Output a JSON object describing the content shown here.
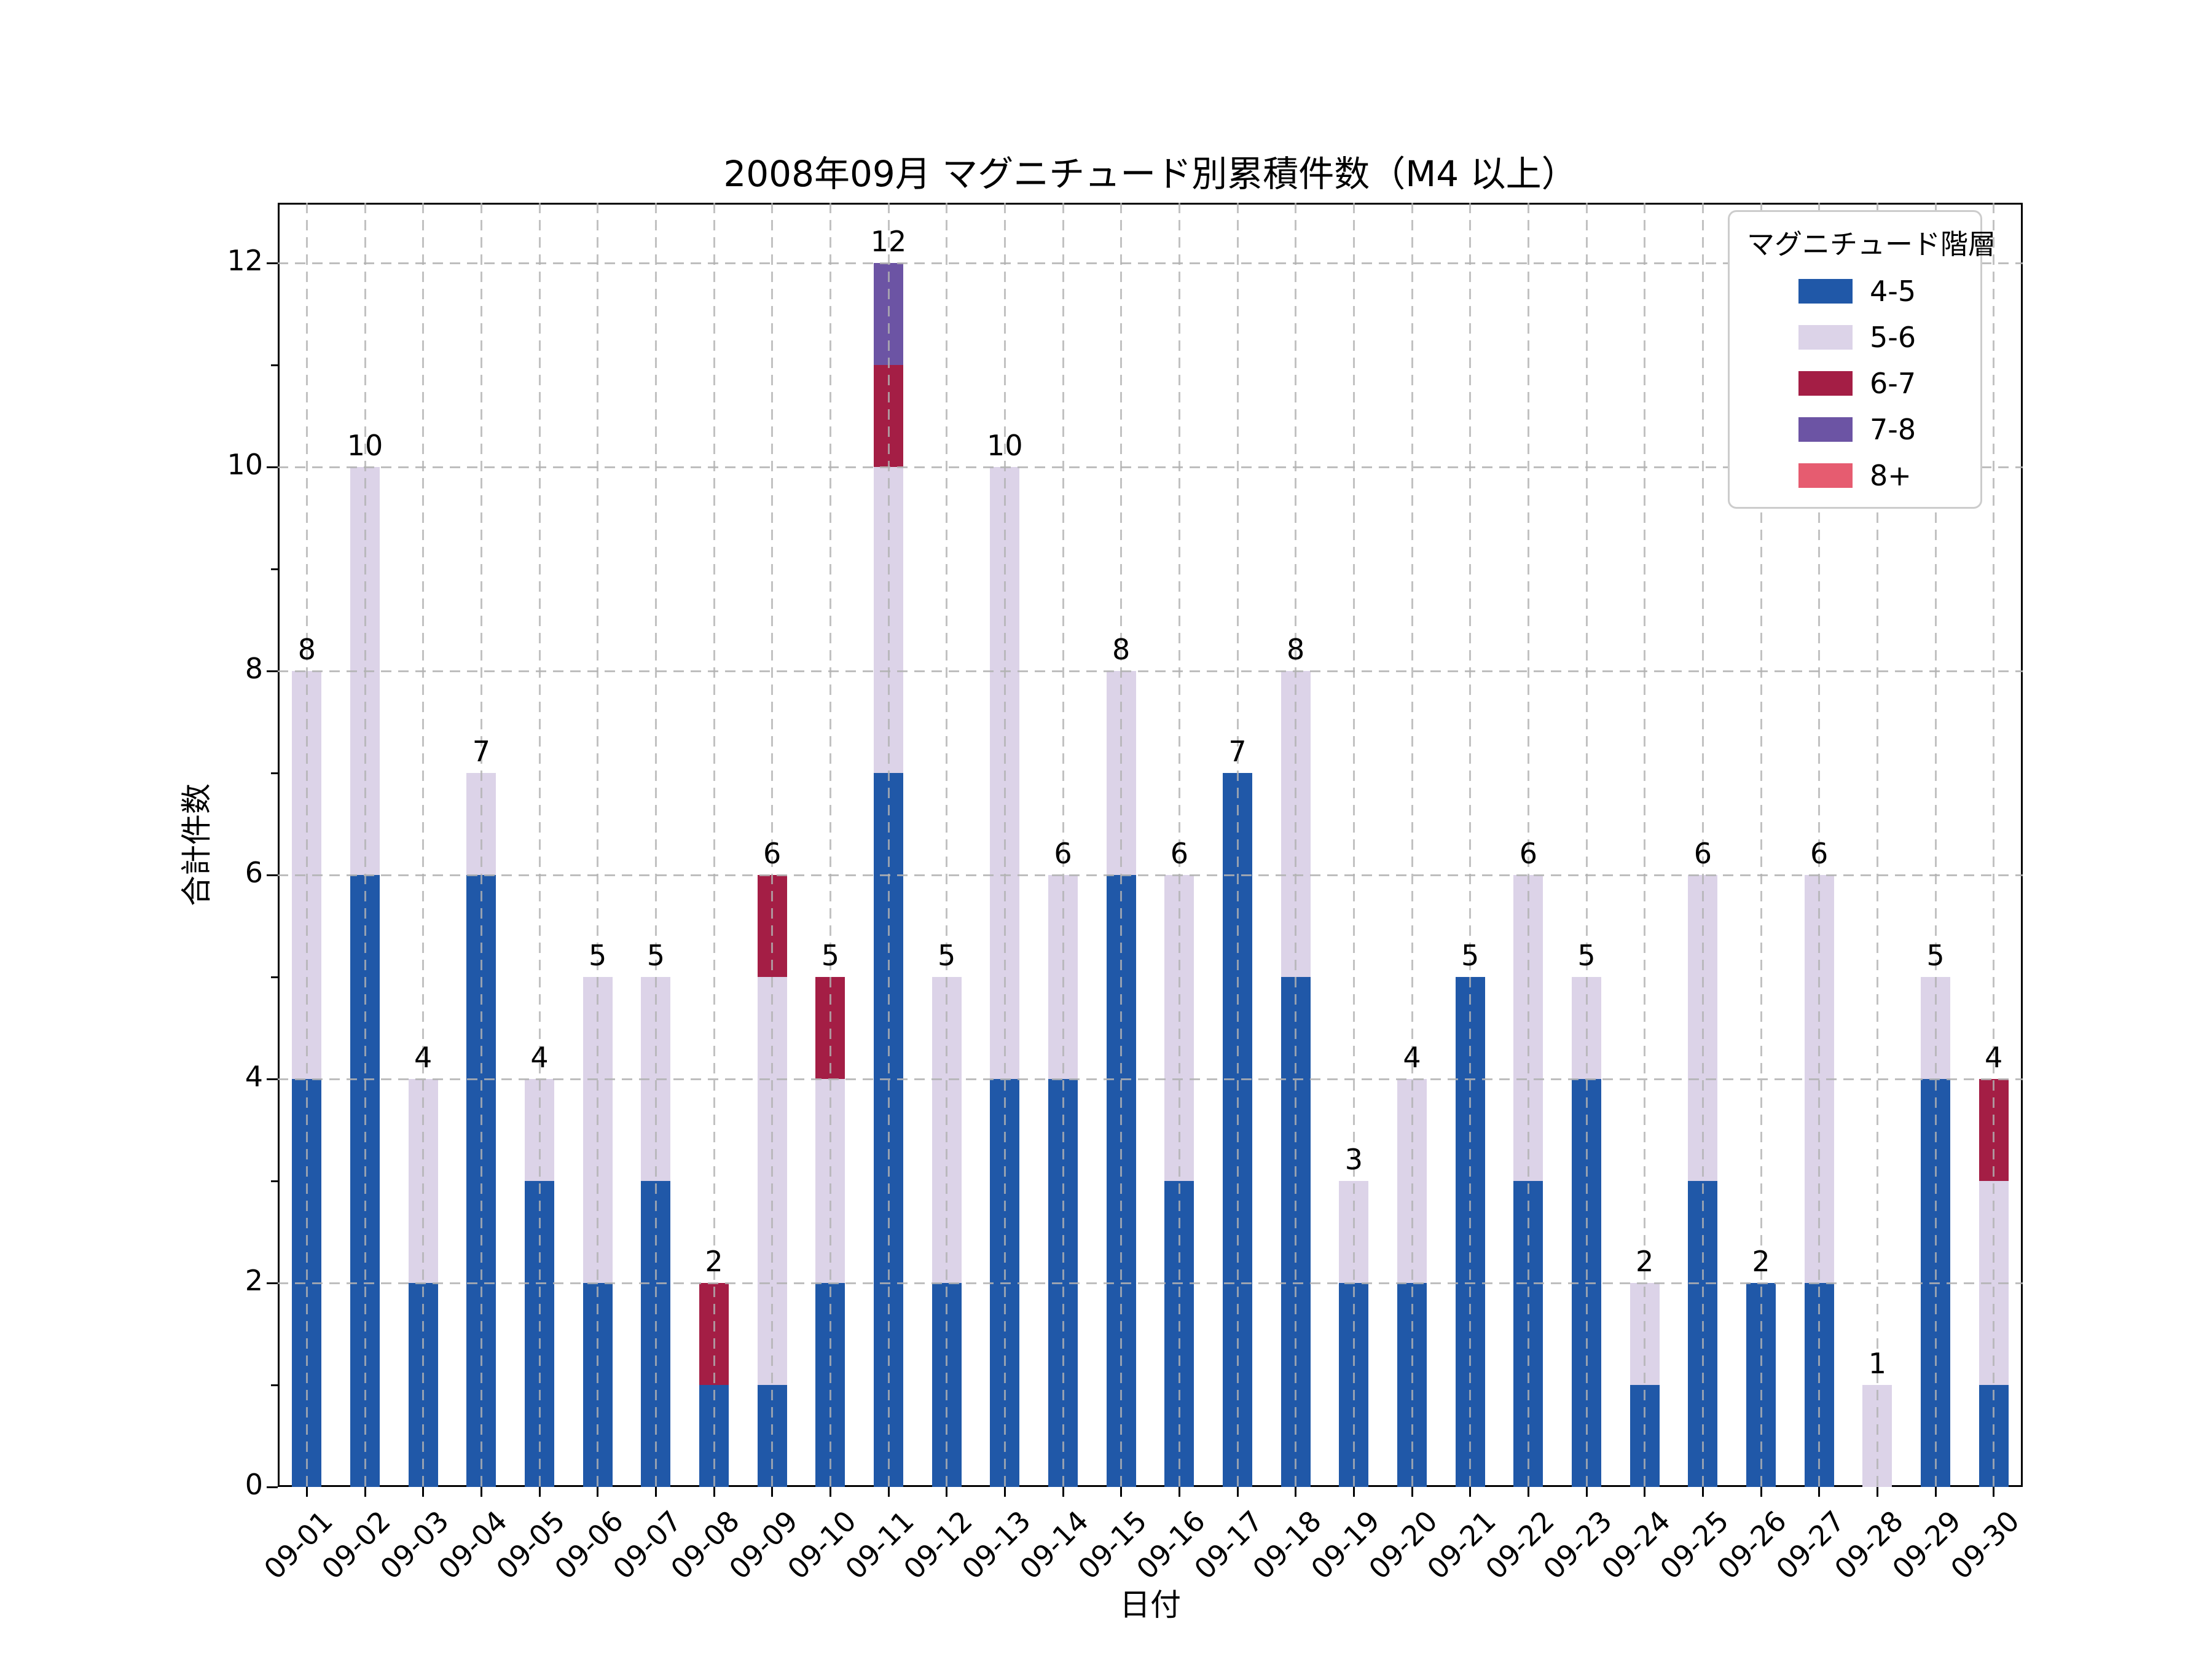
{
  "chart_data": {
    "type": "bar",
    "stacked": true,
    "title": "2008年09月 マグニチュード別累積件数（M4 以上）",
    "xlabel": "日付",
    "ylabel": "合計件数",
    "categories": [
      "09-01",
      "09-02",
      "09-03",
      "09-04",
      "09-05",
      "09-06",
      "09-07",
      "09-08",
      "09-09",
      "09-10",
      "09-11",
      "09-12",
      "09-13",
      "09-14",
      "09-15",
      "09-16",
      "09-17",
      "09-18",
      "09-19",
      "09-20",
      "09-21",
      "09-22",
      "09-23",
      "09-24",
      "09-25",
      "09-26",
      "09-27",
      "09-28",
      "09-29",
      "09-30"
    ],
    "series": [
      {
        "name": "4-5",
        "color": "#2058A8",
        "values": [
          4,
          6,
          2,
          6,
          3,
          2,
          3,
          1,
          1,
          2,
          7,
          2,
          4,
          4,
          6,
          3,
          7,
          5,
          2,
          2,
          5,
          3,
          4,
          1,
          3,
          2,
          2,
          0,
          4,
          1
        ]
      },
      {
        "name": "5-6",
        "color": "#DCD3E8",
        "values": [
          4,
          4,
          2,
          1,
          1,
          3,
          2,
          0,
          4,
          2,
          3,
          3,
          6,
          2,
          2,
          3,
          0,
          3,
          1,
          2,
          0,
          3,
          1,
          1,
          3,
          0,
          4,
          1,
          1,
          2
        ]
      },
      {
        "name": "6-7",
        "color": "#A41E45",
        "values": [
          0,
          0,
          0,
          0,
          0,
          0,
          0,
          1,
          1,
          1,
          1,
          0,
          0,
          0,
          0,
          0,
          0,
          0,
          0,
          0,
          0,
          0,
          0,
          0,
          0,
          0,
          0,
          0,
          0,
          1
        ]
      },
      {
        "name": "7-8",
        "color": "#6C54A4",
        "values": [
          0,
          0,
          0,
          0,
          0,
          0,
          0,
          0,
          0,
          0,
          1,
          0,
          0,
          0,
          0,
          0,
          0,
          0,
          0,
          0,
          0,
          0,
          0,
          0,
          0,
          0,
          0,
          0,
          0,
          0
        ]
      },
      {
        "name": "8+",
        "color": "#E65C70",
        "values": [
          0,
          0,
          0,
          0,
          0,
          0,
          0,
          0,
          0,
          0,
          0,
          0,
          0,
          0,
          0,
          0,
          0,
          0,
          0,
          0,
          0,
          0,
          0,
          0,
          0,
          0,
          0,
          0,
          0,
          0
        ]
      }
    ],
    "totals": [
      8,
      10,
      4,
      7,
      4,
      5,
      5,
      2,
      6,
      5,
      12,
      5,
      10,
      6,
      8,
      6,
      7,
      8,
      3,
      4,
      5,
      6,
      5,
      2,
      6,
      2,
      6,
      1,
      5,
      4
    ],
    "y_ticks": [
      0,
      2,
      4,
      6,
      8,
      10,
      12
    ],
    "ylim": [
      0,
      12.6
    ],
    "grid": true,
    "grid_style": "dashed",
    "legend_title": "マグニチュード階層",
    "legend_position": "upper right",
    "axis_color": "#000000",
    "grid_color": "#b2b2b2"
  }
}
